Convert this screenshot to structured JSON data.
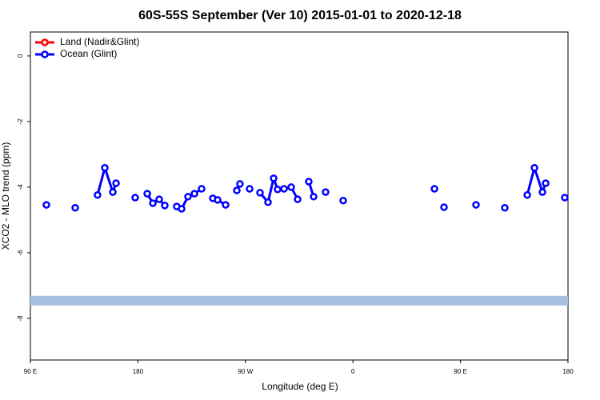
{
  "chart_data": {
    "type": "line",
    "title": "60S-55S September (Ver 10)   2015-01-01 to 2020-12-18",
    "x_label": "Longitude (deg E)",
    "y_label": "XCO2 - MLO trend (ppm)",
    "xlim": [
      90,
      540
    ],
    "ylim": [
      -9.27,
      0.73
    ],
    "xticks": [
      {
        "value": 90,
        "label": "90 E"
      },
      180,
      {
        "value": 270,
        "label": "90 W"
      },
      {
        "value": 360,
        "label": "0"
      },
      {
        "value": 450,
        "label": "90 E"
      },
      180
    ],
    "yticks": [
      0,
      -2,
      -4,
      -6,
      -8
    ],
    "reference_band": -7.46,
    "band_color": "#a7bfe0",
    "legend": "top-left",
    "series": [
      {
        "name": "Land (Nadir&Glint)",
        "color": "#ff0000",
        "x": [],
        "values": []
      },
      {
        "name": "Ocean (Glint)",
        "color": "#0000ff",
        "x": [
          103.4,
          115,
          127.5,
          137,
          146.2,
          152.3,
          159,
          161.7,
          170,
          177.7,
          183,
          187.8,
          192.5,
          197.8,
          202.5,
          207,
          212.5,
          216.6,
          221.9,
          227.3,
          233.3,
          238,
          242.7,
          246.7,
          253.4,
          258,
          262.8,
          265.4,
          270,
          273.5,
          278,
          282.2,
          288.9,
          293.6,
          296.9,
          302.3,
          308.3,
          313.7,
          318,
          323,
          327.1,
          332,
          337.1,
          344,
          351.8,
          390,
          428.2,
          432,
          436.2,
          450,
          463,
          475,
          487.1,
          496,
          505.9,
          511.9,
          518.6,
          521.3,
          529,
          537.3
        ],
        "values": [
          -4.54,
          null,
          -4.63,
          null,
          -4.24,
          -3.41,
          -4.15,
          -3.88,
          null,
          -4.32,
          null,
          -4.2,
          -4.49,
          -4.37,
          -4.56,
          null,
          -4.59,
          -4.66,
          -4.29,
          -4.2,
          -4.05,
          null,
          -4.34,
          -4.39,
          -4.54,
          null,
          -4.1,
          -3.9,
          null,
          -4.05,
          null,
          -4.17,
          -4.46,
          -3.73,
          -4.07,
          -4.05,
          -4.0,
          -4.37,
          null,
          -3.83,
          -4.29,
          null,
          -4.15,
          null,
          -4.41,
          null,
          -4.05,
          null,
          -4.61,
          null,
          -4.54,
          null,
          -4.63,
          null,
          -4.24,
          -3.41,
          -4.15,
          -3.88,
          null,
          -4.32
        ]
      }
    ]
  }
}
